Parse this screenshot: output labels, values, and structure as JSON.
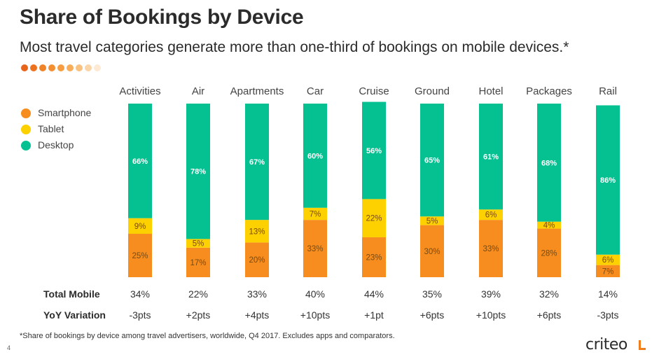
{
  "slide": {
    "title": "Share of Bookings by Device",
    "subtitle": "Most travel categories generate more than one-third of bookings on mobile devices.*",
    "footnote": "*Share of bookings by device among travel advertisers, worldwide, Q4 2017. Excludes apps and comparators.",
    "page_number": "4",
    "logo_text": "criteo",
    "decor_dot_colors": [
      "#e8641b",
      "#ec7220",
      "#f08227",
      "#f38f31",
      "#f59d40",
      "#f7ad59",
      "#f9c17f",
      "#fbd5a8",
      "#fde9d4"
    ]
  },
  "colors": {
    "smartphone": "#f68d1e",
    "tablet": "#fdd100",
    "desktop": "#05c191",
    "bar_label_dark": "#7a4a10",
    "bar_label_light": "#ffffff"
  },
  "legend": [
    {
      "name": "Smartphone",
      "color": "#f68d1e"
    },
    {
      "name": "Tablet",
      "color": "#fdd100"
    },
    {
      "name": "Desktop",
      "color": "#05c191"
    }
  ],
  "rows": {
    "total_mobile_label": "Total Mobile",
    "yoy_label": "YoY Variation"
  },
  "chart_data": {
    "type": "bar",
    "stacked": true,
    "categories": [
      "Activities",
      "Air",
      "Apartments",
      "Car",
      "Cruise",
      "Ground",
      "Hotel",
      "Packages",
      "Rail"
    ],
    "series": [
      {
        "name": "Smartphone",
        "values": [
          25,
          17,
          20,
          33,
          23,
          30,
          33,
          28,
          7
        ],
        "labels": [
          "25%",
          "17%",
          "20%",
          "33%",
          "23%",
          "30%",
          "33%",
          "28%",
          "7%"
        ]
      },
      {
        "name": "Tablet",
        "values": [
          9,
          5,
          13,
          7,
          22,
          5,
          6,
          4,
          6
        ],
        "labels": [
          "9%",
          "5%",
          "13%",
          "7%",
          "22%",
          "5%",
          "6%",
          "4%",
          "6%"
        ]
      },
      {
        "name": "Desktop",
        "values": [
          66,
          78,
          67,
          60,
          56,
          65,
          61,
          68,
          86
        ],
        "labels": [
          "66%",
          "78%",
          "67%",
          "60%",
          "56%",
          "65%",
          "61%",
          "68%",
          "86%"
        ]
      }
    ],
    "total_mobile": [
      "34%",
      "22%",
      "33%",
      "40%",
      "44%",
      "35%",
      "39%",
      "32%",
      "14%"
    ],
    "yoy_variation": [
      "-3pts",
      "+2pts",
      "+4pts",
      "+10pts",
      "+1pt",
      "+6pts",
      "+10pts",
      "+6pts",
      "-3pts"
    ],
    "ylim": [
      0,
      100
    ],
    "grid": false,
    "legend_position": "left"
  }
}
